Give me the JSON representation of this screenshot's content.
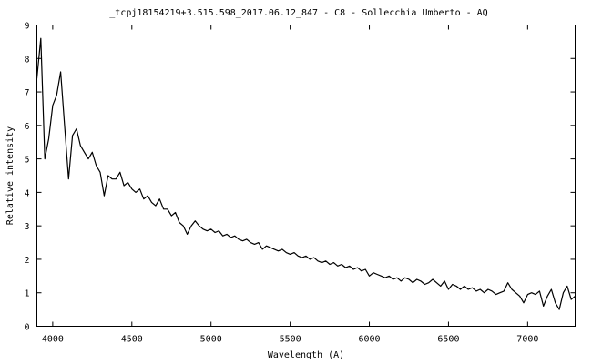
{
  "chart_data": {
    "type": "line",
    "title": "_tcpj18154219+3.515.598_2017.06.12_847 - C8 - Sollecchia Umberto - AQ",
    "xlabel": "Wavelength (A)",
    "ylabel": "Relative intensity",
    "xlim": [
      3900,
      7300
    ],
    "ylim": [
      0,
      9
    ],
    "xticks": [
      4000,
      4500,
      5000,
      5500,
      6000,
      6500,
      7000
    ],
    "yticks": [
      0,
      1,
      2,
      3,
      4,
      5,
      6,
      7,
      8,
      9
    ],
    "grid": false,
    "legend": "none",
    "line_color": "#000000",
    "x": [
      3900,
      3925,
      3950,
      3975,
      4000,
      4025,
      4050,
      4075,
      4100,
      4125,
      4150,
      4175,
      4200,
      4225,
      4250,
      4275,
      4300,
      4325,
      4350,
      4375,
      4400,
      4425,
      4450,
      4475,
      4500,
      4525,
      4550,
      4575,
      4600,
      4625,
      4650,
      4675,
      4700,
      4725,
      4750,
      4775,
      4800,
      4825,
      4850,
      4875,
      4900,
      4925,
      4950,
      4975,
      5000,
      5025,
      5050,
      5075,
      5100,
      5125,
      5150,
      5175,
      5200,
      5225,
      5250,
      5275,
      5300,
      5325,
      5350,
      5375,
      5400,
      5425,
      5450,
      5475,
      5500,
      5525,
      5550,
      5575,
      5600,
      5625,
      5650,
      5675,
      5700,
      5725,
      5750,
      5775,
      5800,
      5825,
      5850,
      5875,
      5900,
      5925,
      5950,
      5975,
      6000,
      6025,
      6050,
      6075,
      6100,
      6125,
      6150,
      6175,
      6200,
      6225,
      6250,
      6275,
      6300,
      6325,
      6350,
      6375,
      6400,
      6425,
      6450,
      6475,
      6500,
      6525,
      6550,
      6575,
      6600,
      6625,
      6650,
      6675,
      6700,
      6725,
      6750,
      6775,
      6800,
      6825,
      6850,
      6875,
      6900,
      6925,
      6950,
      6975,
      7000,
      7025,
      7050,
      7075,
      7100,
      7125,
      7150,
      7175,
      7200,
      7225,
      7250,
      7275,
      7300
    ],
    "y": [
      7.4,
      8.6,
      5.0,
      5.6,
      6.6,
      6.9,
      7.6,
      6.0,
      4.4,
      5.7,
      5.9,
      5.4,
      5.2,
      5.0,
      5.2,
      4.8,
      4.6,
      3.9,
      4.5,
      4.4,
      4.4,
      4.6,
      4.2,
      4.3,
      4.1,
      4.0,
      4.1,
      3.8,
      3.9,
      3.7,
      3.6,
      3.8,
      3.5,
      3.5,
      3.3,
      3.4,
      3.1,
      3.0,
      2.75,
      3.0,
      3.15,
      3.0,
      2.9,
      2.85,
      2.9,
      2.8,
      2.85,
      2.7,
      2.75,
      2.65,
      2.7,
      2.6,
      2.55,
      2.6,
      2.5,
      2.45,
      2.5,
      2.3,
      2.4,
      2.35,
      2.3,
      2.25,
      2.3,
      2.2,
      2.15,
      2.2,
      2.1,
      2.05,
      2.1,
      2.0,
      2.05,
      1.95,
      1.9,
      1.95,
      1.85,
      1.9,
      1.8,
      1.85,
      1.75,
      1.8,
      1.7,
      1.75,
      1.65,
      1.7,
      1.5,
      1.6,
      1.55,
      1.5,
      1.45,
      1.5,
      1.4,
      1.45,
      1.35,
      1.45,
      1.4,
      1.3,
      1.4,
      1.35,
      1.25,
      1.3,
      1.4,
      1.3,
      1.2,
      1.35,
      1.1,
      1.25,
      1.2,
      1.1,
      1.2,
      1.1,
      1.15,
      1.05,
      1.1,
      1.0,
      1.1,
      1.05,
      0.95,
      1.0,
      1.05,
      1.3,
      1.1,
      1.0,
      0.9,
      0.7,
      0.95,
      1.0,
      0.95,
      1.05,
      0.6,
      0.9,
      1.1,
      0.7,
      0.5,
      1.0,
      1.2,
      0.8,
      0.9
    ]
  }
}
